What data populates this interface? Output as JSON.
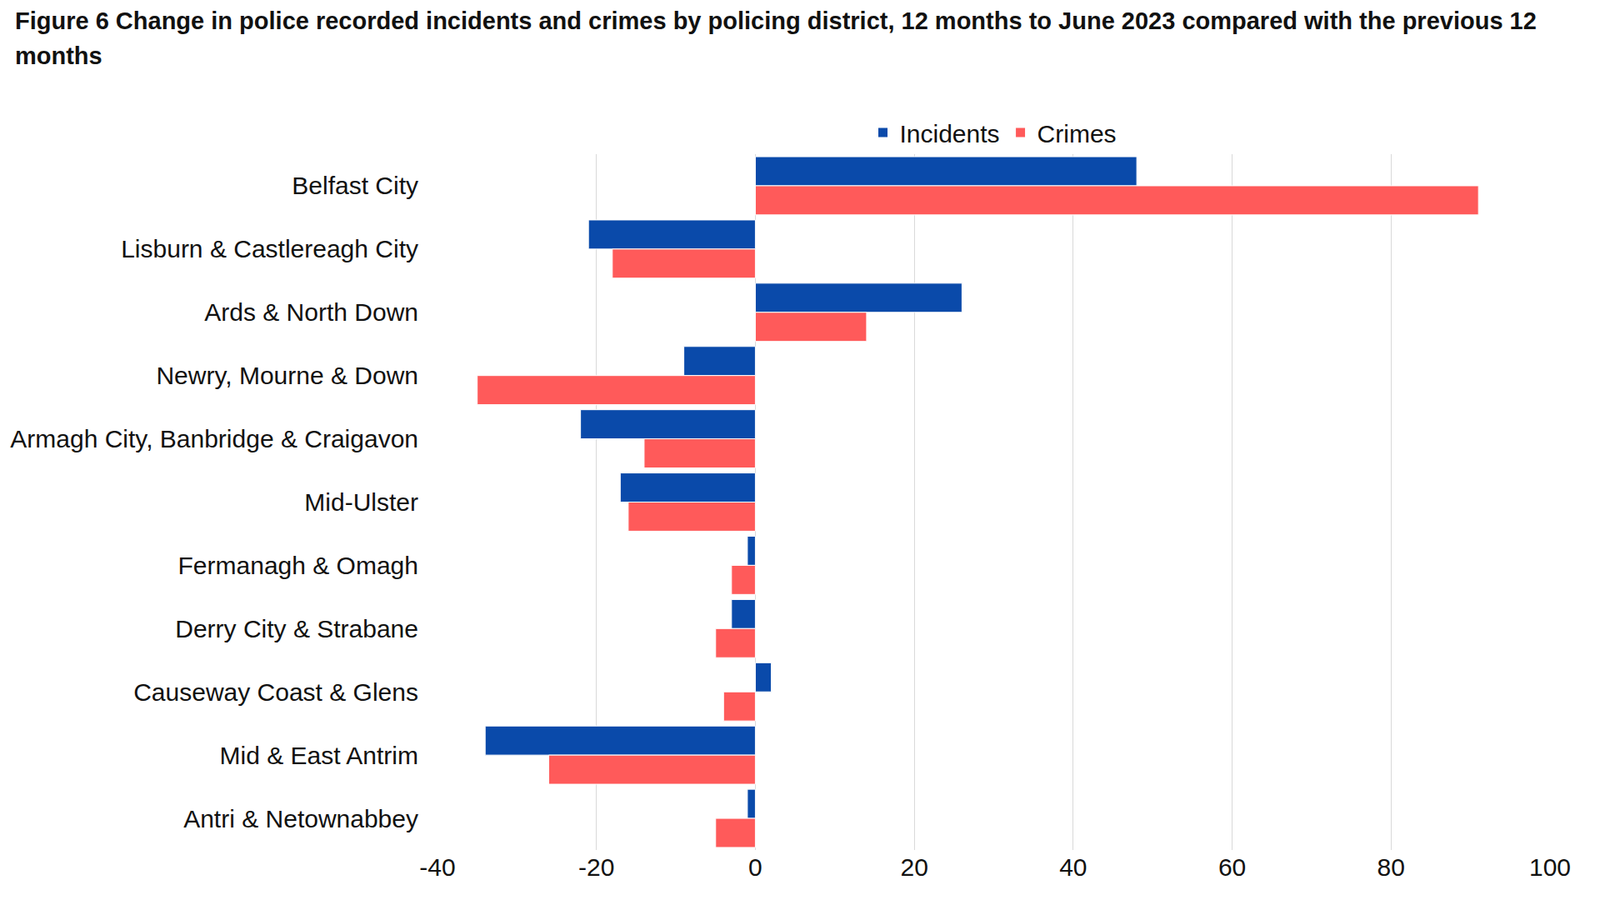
{
  "chart_data": {
    "type": "bar",
    "orientation": "horizontal",
    "title": "Figure 6 Change in police recorded incidents and crimes by policing district, 12 months to June 2023 compared with the previous 12 months",
    "categories": [
      "Belfast City",
      "Lisburn & Castlereagh City",
      "Ards & North Down",
      "Newry, Mourne & Down",
      "Armagh City, Banbridge & Craigavon",
      "Mid-Ulster",
      "Fermanagh & Omagh",
      "Derry City & Strabane",
      "Causeway Coast & Glens",
      "Mid & East Antrim",
      "Antri & Netownabbey"
    ],
    "series": [
      {
        "name": "Incidents",
        "color": "#0a4aaa",
        "values": [
          48,
          -21,
          26,
          -9,
          -22,
          -17,
          -1,
          -3,
          2,
          -34,
          -1
        ]
      },
      {
        "name": "Crimes",
        "color": "#ff5a5a",
        "values": [
          91,
          -18,
          14,
          -35,
          -14,
          -16,
          -3,
          -5,
          -4,
          -26,
          -5
        ]
      }
    ],
    "xlim": [
      -40,
      100
    ],
    "xticks": [
      -40,
      -20,
      0,
      20,
      40,
      60,
      80,
      100
    ],
    "grid": true,
    "legend": "top"
  }
}
